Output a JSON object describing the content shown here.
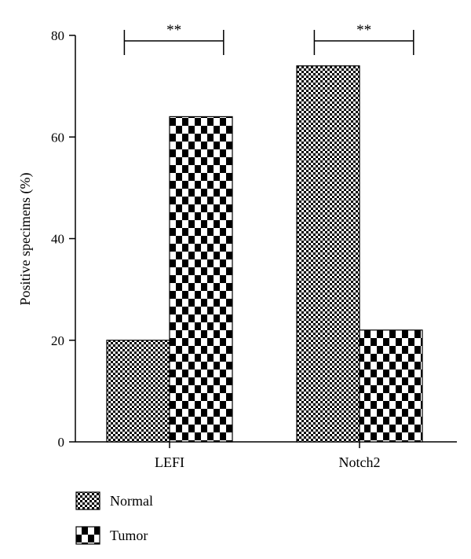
{
  "chart_data": {
    "type": "bar",
    "categories": [
      "LEFI",
      "Notch2"
    ],
    "series": [
      {
        "name": "Normal",
        "values": [
          20,
          74
        ],
        "pattern": "fine-checker"
      },
      {
        "name": "Tumor",
        "values": [
          64,
          22
        ],
        "pattern": "coarse-checker"
      }
    ],
    "ylabel": "Positive specimens (%)",
    "ylim": [
      0,
      80
    ],
    "yticks": [
      0,
      20,
      40,
      60,
      80
    ],
    "significance": [
      {
        "category": "LEFI",
        "label": "**"
      },
      {
        "category": "Notch2",
        "label": "**"
      }
    ],
    "legend_position": "bottom-left",
    "grid": false,
    "colors": {
      "ink": "#000000",
      "background": "#ffffff"
    }
  }
}
